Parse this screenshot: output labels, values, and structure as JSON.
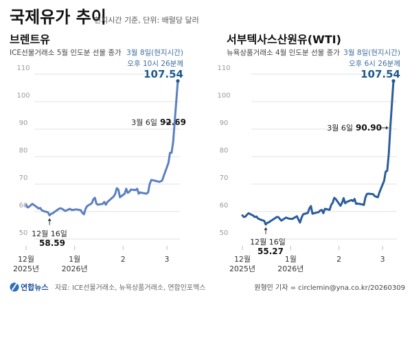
{
  "header": {
    "title": "국제유가 추이",
    "subtitle": "현지시간 기준, 단위: 배럴당 달러"
  },
  "colors": {
    "brent_line": "#5b7fc0",
    "wti_line": "#2b5c9c",
    "highlight_text": "#1f5a8a",
    "annotation_blue": "#3d6e9e"
  },
  "chart_data": [
    {
      "type": "line",
      "title": "브렌트유",
      "subtitle": "ICE선물거래소 5월 인도분 선물 종가",
      "ylim": [
        50,
        110
      ],
      "yticks": [
        110,
        100,
        90,
        80,
        70,
        60,
        50
      ],
      "grid": true,
      "xticks": [
        {
          "date": "2025-12-01",
          "label": "12월",
          "sublabel": "2025년"
        },
        {
          "date": "2026-01-01",
          "label": "1월",
          "sublabel": "2026년"
        },
        {
          "date": "2026-02-01",
          "label": "2",
          "sublabel": ""
        },
        {
          "date": "2026-03-01",
          "label": "3",
          "sublabel": ""
        }
      ],
      "x": [
        "2025-12-01",
        "2025-12-02",
        "2025-12-03",
        "2025-12-04",
        "2025-12-05",
        "2025-12-08",
        "2025-12-09",
        "2025-12-10",
        "2025-12-11",
        "2025-12-12",
        "2025-12-15",
        "2025-12-16",
        "2025-12-17",
        "2025-12-18",
        "2025-12-19",
        "2025-12-22",
        "2025-12-23",
        "2025-12-24",
        "2025-12-26",
        "2025-12-29",
        "2025-12-30",
        "2025-12-31",
        "2026-01-02",
        "2026-01-05",
        "2026-01-06",
        "2026-01-07",
        "2026-01-08",
        "2026-01-09",
        "2026-01-12",
        "2026-01-13",
        "2026-01-14",
        "2026-01-15",
        "2026-01-16",
        "2026-01-19",
        "2026-01-20",
        "2026-01-21",
        "2026-01-22",
        "2026-01-23",
        "2026-01-26",
        "2026-01-27",
        "2026-01-28",
        "2026-01-29",
        "2026-01-30",
        "2026-02-02",
        "2026-02-03",
        "2026-02-04",
        "2026-02-05",
        "2026-02-06",
        "2026-02-09",
        "2026-02-10",
        "2026-02-11",
        "2026-02-12",
        "2026-02-13",
        "2026-02-16",
        "2026-02-17",
        "2026-02-18",
        "2026-02-19",
        "2026-02-20",
        "2026-02-23",
        "2026-02-24",
        "2026-02-25",
        "2026-02-26",
        "2026-02-27",
        "2026-03-02",
        "2026-03-03",
        "2026-03-04",
        "2026-03-05",
        "2026-03-06",
        "2026-03-08"
      ],
      "values": [
        62.4,
        61.5,
        61.8,
        62.3,
        62.8,
        61.6,
        61.1,
        61.3,
        60.5,
        60.2,
        59.7,
        58.59,
        59.2,
        59.3,
        59.8,
        61.0,
        61.2,
        61.0,
        60.2,
        61.0,
        60.6,
        60.6,
        60.8,
        60.5,
        59.5,
        59.0,
        61.0,
        62.0,
        63.0,
        64.5,
        65.0,
        62.8,
        62.5,
        62.8,
        63.5,
        62.5,
        63.5,
        64.0,
        65.5,
        66.5,
        68.5,
        68.0,
        65.2,
        66.5,
        68.3,
        66.8,
        67.2,
        68.0,
        67.8,
        68.3,
        66.5,
        67.0,
        66.8,
        66.5,
        67.0,
        70.0,
        71.5,
        71.4,
        71.0,
        70.8,
        71.0,
        71.3,
        73.0,
        77.7,
        81.4,
        81.4,
        85.4,
        92.69,
        107.54
      ],
      "annotations": {
        "low": {
          "date_label": "12월 16일",
          "value": "58.59"
        },
        "mar6": {
          "date_label": "3월 6일",
          "value": "92.69"
        },
        "latest": {
          "line1": "3월 8일(현지시간)",
          "line2": "오후 10시 26분께",
          "value": "107.54"
        }
      }
    },
    {
      "type": "line",
      "title": "서부텍사스산원유(WTI)",
      "subtitle": "뉴욕상품거래소 4월 인도분 선물 종가",
      "ylim": [
        50,
        110
      ],
      "yticks": [
        110,
        100,
        90,
        80,
        70,
        60,
        50
      ],
      "grid": true,
      "xticks": [
        {
          "date": "2025-12-01",
          "label": "12월",
          "sublabel": "2025년"
        },
        {
          "date": "2026-01-01",
          "label": "1월",
          "sublabel": "2026년"
        },
        {
          "date": "2026-02-01",
          "label": "2",
          "sublabel": ""
        },
        {
          "date": "2026-03-01",
          "label": "3",
          "sublabel": ""
        }
      ],
      "x": [
        "2025-12-01",
        "2025-12-02",
        "2025-12-03",
        "2025-12-04",
        "2025-12-05",
        "2025-12-08",
        "2025-12-09",
        "2025-12-10",
        "2025-12-11",
        "2025-12-12",
        "2025-12-15",
        "2025-12-16",
        "2025-12-17",
        "2025-12-18",
        "2025-12-19",
        "2025-12-22",
        "2025-12-23",
        "2025-12-24",
        "2025-12-26",
        "2025-12-29",
        "2025-12-30",
        "2025-12-31",
        "2026-01-02",
        "2026-01-05",
        "2026-01-06",
        "2026-01-07",
        "2026-01-08",
        "2026-01-09",
        "2026-01-12",
        "2026-01-13",
        "2026-01-14",
        "2026-01-15",
        "2026-01-16",
        "2026-01-19",
        "2026-01-20",
        "2026-01-21",
        "2026-01-22",
        "2026-01-23",
        "2026-01-26",
        "2026-01-27",
        "2026-01-28",
        "2026-01-29",
        "2026-01-30",
        "2026-02-02",
        "2026-02-03",
        "2026-02-04",
        "2026-02-05",
        "2026-02-06",
        "2026-02-09",
        "2026-02-10",
        "2026-02-11",
        "2026-02-12",
        "2026-02-13",
        "2026-02-16",
        "2026-02-17",
        "2026-02-18",
        "2026-02-19",
        "2026-02-20",
        "2026-02-23",
        "2026-02-24",
        "2026-02-25",
        "2026-02-26",
        "2026-02-27",
        "2026-03-02",
        "2026-03-03",
        "2026-03-04",
        "2026-03-05",
        "2026-03-06",
        "2026-03-08"
      ],
      "values": [
        58.6,
        58.0,
        58.2,
        58.9,
        59.4,
        58.5,
        58.0,
        58.2,
        57.5,
        57.2,
        56.6,
        55.27,
        55.9,
        56.1,
        56.5,
        57.6,
        58.0,
        58.0,
        56.7,
        57.8,
        57.6,
        57.4,
        57.3,
        58.3,
        57.1,
        56.0,
        57.8,
        59.0,
        59.5,
        61.1,
        62.0,
        59.2,
        59.4,
        59.8,
        60.4,
        60.6,
        59.4,
        61.0,
        60.6,
        62.4,
        63.2,
        65.0,
        64.5,
        62.1,
        63.2,
        64.9,
        63.0,
        63.5,
        64.2,
        63.8,
        64.6,
        62.8,
        62.9,
        62.6,
        62.4,
        65.2,
        66.4,
        66.5,
        66.3,
        65.6,
        65.4,
        65.2,
        67.0,
        71.2,
        74.6,
        74.8,
        81.0,
        90.9,
        107.54
      ],
      "annotations": {
        "low": {
          "date_label": "12월 16일",
          "value": "55.27"
        },
        "mar6": {
          "date_label": "3월 6일",
          "value": "90.90"
        },
        "latest": {
          "line1": "3월 8일(현지시간)",
          "line2": "오후 6시 26분께",
          "value": "107.54"
        }
      }
    }
  ],
  "footer": {
    "logo_text": "연합뉴스",
    "source": "자료: ICE선물거래소, 뉴욕상품거래소, 연합인포맥스",
    "credit": "원형민 기자 = circlemin@yna.co.kr/20260309"
  }
}
